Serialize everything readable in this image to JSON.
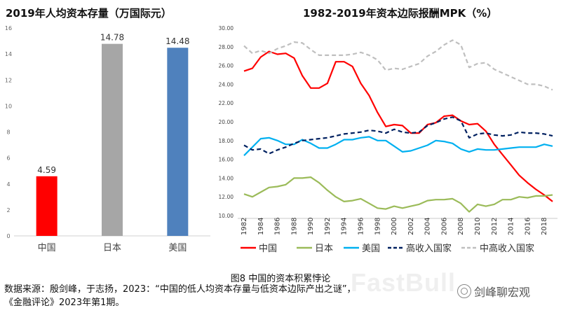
{
  "chart_data": [
    {
      "type": "bar",
      "title": "2019年人均资本存量（万国际元）",
      "categories": [
        "中国",
        "日本",
        "美国"
      ],
      "values": [
        4.59,
        14.78,
        14.48
      ],
      "value_labels": [
        "4.59",
        "14.78",
        "14.48"
      ],
      "colors": [
        "#ff0000",
        "#a6a6a6",
        "#4f81bd"
      ],
      "ylim": [
        0,
        16
      ],
      "yticks": [
        "0",
        "2",
        "4",
        "6",
        "8",
        "10",
        "12",
        "14",
        "16"
      ],
      "grid": false
    },
    {
      "type": "line",
      "title": "1982-2019年资本边际报酬MPK（%）",
      "x": [
        1982,
        1983,
        1984,
        1985,
        1986,
        1987,
        1988,
        1989,
        1990,
        1991,
        1992,
        1993,
        1994,
        1995,
        1996,
        1997,
        1998,
        1999,
        2000,
        2001,
        2002,
        2003,
        2004,
        2005,
        2006,
        2007,
        2008,
        2009,
        2010,
        2011,
        2012,
        2013,
        2014,
        2015,
        2016,
        2017,
        2018,
        2019
      ],
      "xticks": [
        "1982",
        "1984",
        "1986",
        "1988",
        "1990",
        "1992",
        "1994",
        "1996",
        "1998",
        "2000",
        "2002",
        "2004",
        "2006",
        "2008",
        "2010",
        "2012",
        "2014",
        "2016",
        "2018"
      ],
      "ylim": [
        10,
        30
      ],
      "yticks": [
        "10.00",
        "12.00",
        "14.00",
        "16.00",
        "18.00",
        "20.00",
        "22.00",
        "24.00",
        "26.00",
        "28.00",
        "30.00"
      ],
      "legend_position": "bottom",
      "series": [
        {
          "name": "中国",
          "color": "#ff0000",
          "dash": "solid",
          "values": [
            25.4,
            25.7,
            26.9,
            27.5,
            27.2,
            27.3,
            26.8,
            24.9,
            23.6,
            23.6,
            24.1,
            26.4,
            26.4,
            25.9,
            24.1,
            22.8,
            21.0,
            19.5,
            19.7,
            19.6,
            18.8,
            18.8,
            19.7,
            19.9,
            20.6,
            20.7,
            20.1,
            19.7,
            19.8,
            19.0,
            17.6,
            16.5,
            15.4,
            14.3,
            13.5,
            12.8,
            12.2,
            11.5
          ]
        },
        {
          "name": "日本",
          "color": "#9bbb59",
          "dash": "solid",
          "values": [
            12.3,
            12.0,
            12.5,
            13.0,
            13.1,
            13.3,
            14.0,
            14.0,
            14.1,
            13.5,
            12.7,
            12.0,
            11.5,
            11.6,
            11.8,
            11.3,
            10.8,
            10.7,
            11.0,
            10.8,
            11.0,
            11.2,
            11.6,
            11.7,
            11.7,
            11.8,
            11.3,
            10.4,
            11.2,
            11.0,
            11.2,
            11.7,
            11.7,
            12.0,
            11.9,
            12.1,
            12.1,
            12.2
          ]
        },
        {
          "name": "美国",
          "color": "#00b0f0",
          "dash": "solid",
          "values": [
            16.4,
            17.3,
            18.2,
            18.3,
            18.0,
            17.6,
            17.6,
            18.1,
            17.7,
            17.2,
            17.2,
            17.6,
            18.1,
            18.1,
            18.3,
            18.4,
            18.0,
            18.0,
            17.4,
            16.8,
            16.9,
            17.2,
            17.5,
            18.0,
            17.9,
            17.7,
            17.1,
            16.8,
            17.1,
            17.0,
            17.0,
            17.1,
            17.2,
            17.3,
            17.3,
            17.3,
            17.6,
            17.4
          ]
        },
        {
          "name": "高收入国家",
          "color": "#002060",
          "dash": "dashed",
          "values": [
            17.5,
            17.0,
            17.1,
            16.6,
            17.0,
            17.3,
            17.7,
            18.0,
            18.1,
            18.2,
            18.3,
            18.5,
            18.7,
            18.8,
            18.9,
            19.1,
            19.0,
            18.8,
            19.2,
            18.9,
            18.8,
            18.9,
            19.6,
            19.9,
            20.3,
            20.5,
            20.1,
            18.3,
            18.7,
            18.8,
            18.6,
            18.5,
            18.6,
            18.9,
            18.8,
            18.8,
            18.7,
            18.5
          ]
        },
        {
          "name": "中高收入国家",
          "color": "#bfbfbf",
          "dash": "dashed",
          "values": [
            28.1,
            27.3,
            27.6,
            27.3,
            27.8,
            28.1,
            28.5,
            28.4,
            27.7,
            27.1,
            27.1,
            27.1,
            27.1,
            27.2,
            27.4,
            27.1,
            26.6,
            25.5,
            25.7,
            25.6,
            25.9,
            26.2,
            27.0,
            27.5,
            28.2,
            28.7,
            28.2,
            25.8,
            26.2,
            26.3,
            25.6,
            25.2,
            24.8,
            24.4,
            24.0,
            24.0,
            23.8,
            23.4
          ]
        }
      ]
    }
  ],
  "caption": "图8 中国的资本积累悖论",
  "source_line1": "数据来源：殷剑峰，于志扬，2023：“中国的低人均资本存量与低资本边际产出之谜”，",
  "source_line2": "《金融评论》2023年第1期。",
  "watermark": "FastBull",
  "wechat_account": "剑峰聊宏观",
  "icons": {
    "wechat": "wechat-icon"
  }
}
